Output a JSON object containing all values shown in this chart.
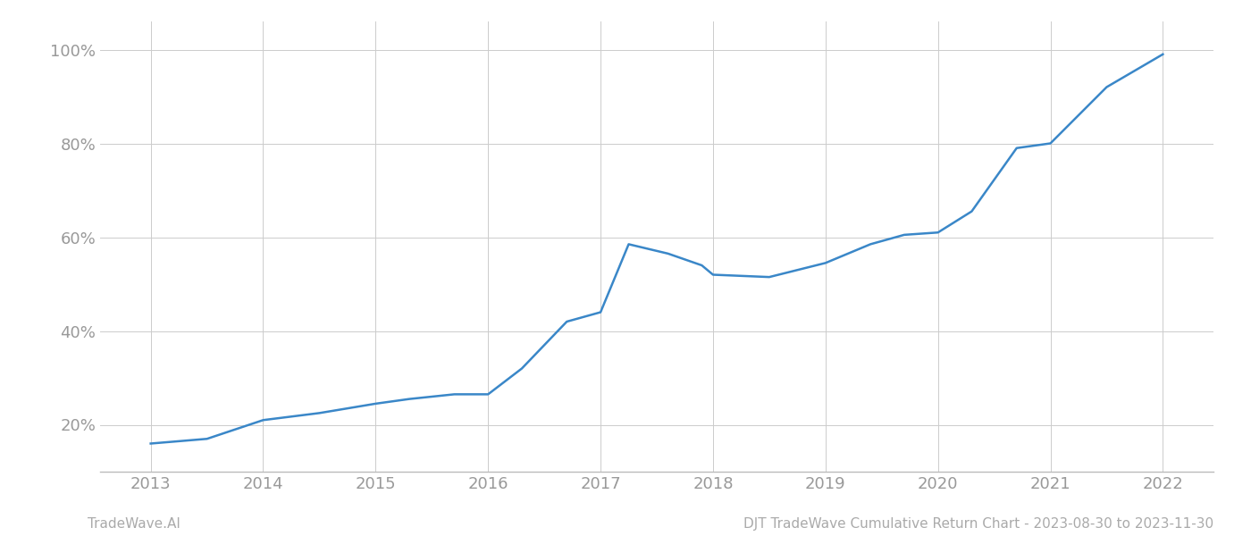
{
  "x_years": [
    2013.0,
    2013.5,
    2014.0,
    2014.5,
    2015.0,
    2015.3,
    2015.7,
    2016.0,
    2016.3,
    2016.7,
    2017.0,
    2017.25,
    2017.6,
    2017.9,
    2018.0,
    2018.5,
    2019.0,
    2019.4,
    2019.7,
    2020.0,
    2020.3,
    2020.7,
    2021.0,
    2021.5,
    2022.0
  ],
  "y_values": [
    0.16,
    0.17,
    0.21,
    0.225,
    0.245,
    0.255,
    0.265,
    0.265,
    0.32,
    0.42,
    0.44,
    0.585,
    0.565,
    0.54,
    0.52,
    0.515,
    0.545,
    0.585,
    0.605,
    0.61,
    0.655,
    0.79,
    0.8,
    0.92,
    0.99
  ],
  "line_color": "#3a87c8",
  "line_width": 1.8,
  "background_color": "#ffffff",
  "grid_color": "#cccccc",
  "grid_linewidth": 0.7,
  "x_ticks": [
    2013,
    2014,
    2015,
    2016,
    2017,
    2018,
    2019,
    2020,
    2021,
    2022
  ],
  "y_ticks": [
    0.2,
    0.4,
    0.6,
    0.8,
    1.0
  ],
  "y_tick_labels": [
    "20%",
    "40%",
    "60%",
    "80%",
    "100%"
  ],
  "x_lim": [
    2012.55,
    2022.45
  ],
  "y_lim": [
    0.1,
    1.06
  ],
  "footer_left": "TradeWave.AI",
  "footer_right": "DJT TradeWave Cumulative Return Chart - 2023-08-30 to 2023-11-30",
  "footer_color": "#aaaaaa",
  "footer_fontsize": 11,
  "tick_label_color": "#999999",
  "tick_label_fontsize": 13,
  "spine_color": "#bbbbbb"
}
